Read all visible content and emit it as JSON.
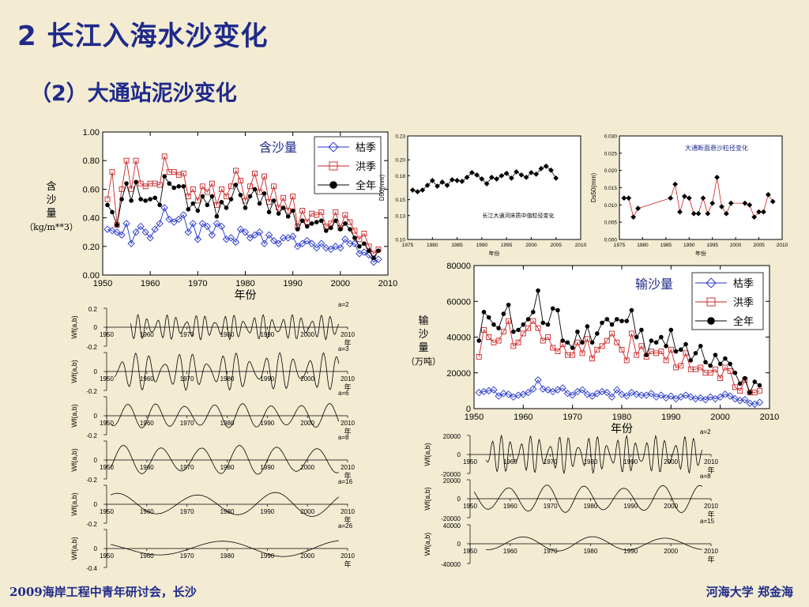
{
  "slide": {
    "title": "2 长江入海水沙变化",
    "subtitle": "（2）大通站泥沙变化",
    "footer_left": "2009海岸工程中青年研讨会，长沙",
    "footer_right": "河海大学  郑金海"
  },
  "colors": {
    "blue": "#2233cc",
    "red": "#cc2222",
    "black": "#000000",
    "title": "#1f2a8a"
  },
  "chart_data": [
    {
      "id": "concentration",
      "type": "line",
      "title": "含沙量",
      "xlabel": "年份",
      "ylabel": "含沙量（kg/m**3）",
      "xlim": [
        1950,
        2010
      ],
      "ylim": [
        0,
        1.0
      ],
      "xticks": [
        "1950",
        "1960",
        "1970",
        "1980",
        "1990",
        "2000",
        "2010"
      ],
      "yticks": [
        "0.00",
        "0.20",
        "0.40",
        "0.60",
        "0.80",
        "1.00"
      ],
      "legend": {
        "position": "top-right",
        "entries": [
          "枯季",
          "洪季",
          "全年"
        ]
      },
      "x": [
        1951,
        1952,
        1953,
        1954,
        1955,
        1956,
        1957,
        1958,
        1959,
        1960,
        1961,
        1962,
        1963,
        1964,
        1965,
        1966,
        1967,
        1968,
        1969,
        1970,
        1971,
        1972,
        1973,
        1974,
        1975,
        1976,
        1977,
        1978,
        1979,
        1980,
        1981,
        1982,
        1983,
        1984,
        1985,
        1986,
        1987,
        1988,
        1989,
        1990,
        1991,
        1992,
        1993,
        1994,
        1995,
        1996,
        1997,
        1998,
        1999,
        2000,
        2001,
        2002,
        2003,
        2004,
        2005,
        2006,
        2007,
        2008
      ],
      "series": [
        {
          "name": "枯季",
          "marker": "diamond",
          "values": [
            0.32,
            0.31,
            0.3,
            0.28,
            0.36,
            0.22,
            0.3,
            0.34,
            0.3,
            0.26,
            0.32,
            0.36,
            0.47,
            0.39,
            0.37,
            0.39,
            0.42,
            0.3,
            0.36,
            0.25,
            0.36,
            0.34,
            0.28,
            0.36,
            0.34,
            0.25,
            0.26,
            0.23,
            0.32,
            0.3,
            0.26,
            0.28,
            0.3,
            0.22,
            0.28,
            0.24,
            0.22,
            0.26,
            0.26,
            0.27,
            0.2,
            0.22,
            0.24,
            0.22,
            0.19,
            0.22,
            0.19,
            0.18,
            0.2,
            0.19,
            0.25,
            0.22,
            0.22,
            0.15,
            0.16,
            0.14,
            0.09,
            0.11
          ]
        },
        {
          "name": "洪季",
          "marker": "square",
          "values": [
            0.53,
            0.72,
            0.35,
            0.6,
            0.8,
            0.6,
            0.8,
            0.64,
            0.62,
            0.64,
            0.64,
            0.63,
            0.83,
            0.72,
            0.72,
            0.7,
            0.71,
            0.55,
            0.6,
            0.52,
            0.62,
            0.58,
            0.64,
            0.49,
            0.6,
            0.55,
            0.62,
            0.73,
            0.66,
            0.52,
            0.62,
            0.71,
            0.58,
            0.69,
            0.51,
            0.62,
            0.47,
            0.54,
            0.45,
            0.55,
            0.34,
            0.45,
            0.37,
            0.43,
            0.42,
            0.44,
            0.34,
            0.36,
            0.44,
            0.33,
            0.42,
            0.37,
            0.31,
            0.25,
            0.29,
            0.2,
            0.15,
            0.18
          ]
        },
        {
          "name": "全年",
          "marker": "circle",
          "values": [
            0.49,
            0.44,
            0.35,
            0.53,
            0.64,
            0.52,
            0.65,
            0.53,
            0.52,
            0.53,
            0.54,
            0.49,
            0.69,
            0.64,
            0.61,
            0.62,
            0.62,
            0.46,
            0.5,
            0.45,
            0.55,
            0.49,
            0.55,
            0.41,
            0.51,
            0.47,
            0.53,
            0.63,
            0.56,
            0.47,
            0.55,
            0.6,
            0.5,
            0.57,
            0.44,
            0.52,
            0.43,
            0.47,
            0.41,
            0.45,
            0.32,
            0.38,
            0.34,
            0.36,
            0.37,
            0.38,
            0.31,
            0.33,
            0.38,
            0.32,
            0.36,
            0.32,
            0.26,
            0.2,
            0.22,
            0.17,
            0.12,
            0.17
          ]
        }
      ]
    },
    {
      "id": "bed-median",
      "type": "line",
      "title": "长江大通河床质中值粒径变化",
      "xlabel": "年份",
      "ylabel": "D50(mm)",
      "xlim": [
        1975,
        2010
      ],
      "ylim": [
        0.1,
        0.23
      ],
      "xticks": [
        "1975",
        "1980",
        "1985",
        "1990",
        "1995",
        "2000",
        "2005",
        "2010"
      ],
      "yticks": [
        "0.10",
        "0.13",
        "0.15",
        "0.18",
        "0.20",
        "0.23"
      ],
      "x": [
        1976,
        1977,
        1978,
        1979,
        1980,
        1981,
        1982,
        1983,
        1984,
        1985,
        1986,
        1987,
        1988,
        1989,
        1990,
        1991,
        1992,
        1993,
        1994,
        1995,
        1996,
        1997,
        1998,
        1999,
        2000,
        2001,
        2002,
        2003,
        2004,
        2005
      ],
      "series": [
        {
          "values": [
            0.162,
            0.16,
            0.162,
            0.168,
            0.174,
            0.167,
            0.172,
            0.168,
            0.175,
            0.174,
            0.173,
            0.178,
            0.184,
            0.181,
            0.176,
            0.17,
            0.178,
            0.176,
            0.18,
            0.183,
            0.177,
            0.185,
            0.181,
            0.178,
            0.184,
            0.182,
            0.189,
            0.192,
            0.187,
            0.177
          ]
        }
      ]
    },
    {
      "id": "suspended-median",
      "type": "line",
      "title": "大通断面悬沙粒径变化",
      "xlabel": "年份",
      "ylabel": "Ds50(mm)",
      "xlim": [
        1975,
        2010
      ],
      "ylim": [
        0,
        0.03
      ],
      "xticks": [
        "1975",
        "1980",
        "1985",
        "1990",
        "1995",
        "2000",
        "2005",
        "2010"
      ],
      "yticks": [
        "0.000",
        "0.005",
        "0.010",
        "0.015",
        "0.020",
        "0.025",
        "0.030"
      ],
      "x": [
        1976,
        1977,
        1978,
        1979,
        1986,
        1987,
        1988,
        1989,
        1990,
        1991,
        1992,
        1993,
        1994,
        1995,
        1996,
        1997,
        1998,
        1999,
        2002,
        2003,
        2004,
        2005,
        2006,
        2007,
        2008
      ],
      "series": [
        {
          "values": [
            0.012,
            0.012,
            0.0065,
            0.009,
            0.012,
            0.016,
            0.008,
            0.0125,
            0.012,
            0.0075,
            0.0075,
            0.012,
            0.0075,
            0.0105,
            0.018,
            0.0095,
            0.0075,
            0.0105,
            0.0105,
            0.01,
            0.0065,
            0.008,
            0.008,
            0.013,
            0.011
          ]
        }
      ]
    },
    {
      "id": "transport",
      "type": "line",
      "title": "输沙量",
      "xlabel": "年份",
      "ylabel": "输沙量（万吨）",
      "xlim": [
        1950,
        2010
      ],
      "ylim": [
        0,
        80000
      ],
      "xticks": [
        "1950",
        "1960",
        "1970",
        "1980",
        "1990",
        "2000",
        "2010"
      ],
      "yticks": [
        "0",
        "20000",
        "40000",
        "60000",
        "80000"
      ],
      "legend": {
        "position": "top-right",
        "entries": [
          "枯季",
          "洪季",
          "全年"
        ]
      },
      "x": [
        1951,
        1952,
        1953,
        1954,
        1955,
        1956,
        1957,
        1958,
        1959,
        1960,
        1961,
        1962,
        1963,
        1964,
        1965,
        1966,
        1967,
        1968,
        1969,
        1970,
        1971,
        1972,
        1973,
        1974,
        1975,
        1976,
        1977,
        1978,
        1979,
        1980,
        1981,
        1982,
        1983,
        1984,
        1985,
        1986,
        1987,
        1988,
        1989,
        1990,
        1991,
        1992,
        1993,
        1994,
        1995,
        1996,
        1997,
        1998,
        1999,
        2000,
        2001,
        2002,
        2003,
        2004,
        2005,
        2006,
        2007,
        2008
      ],
      "series": [
        {
          "name": "枯季",
          "marker": "diamond",
          "values": [
            9000,
            9500,
            10000,
            10500,
            7000,
            8500,
            8000,
            6500,
            7500,
            8000,
            9000,
            11000,
            16000,
            11000,
            10500,
            9500,
            10500,
            11500,
            8500,
            7500,
            9500,
            10500,
            8000,
            7000,
            8500,
            9500,
            9000,
            6500,
            10500,
            8000,
            7000,
            9000,
            8000,
            7500,
            7500,
            8500,
            6500,
            7500,
            6000,
            7000,
            5500,
            6500,
            7500,
            6500,
            5500,
            6000,
            5000,
            6500,
            5500,
            6500,
            8000,
            7000,
            5500,
            4500,
            5000,
            3000,
            2500,
            3500
          ]
        },
        {
          "name": "洪季",
          "marker": "square",
          "values": [
            29000,
            44000,
            40000,
            37000,
            38000,
            43000,
            49000,
            35000,
            37000,
            42000,
            45000,
            49000,
            45000,
            38000,
            40000,
            34000,
            32000,
            36000,
            30000,
            30000,
            37000,
            31000,
            39000,
            28000,
            33000,
            35000,
            38000,
            42000,
            37000,
            33000,
            27000,
            42000,
            30000,
            35000,
            29000,
            32000,
            31000,
            32000,
            27000,
            33000,
            23000,
            24000,
            31000,
            22000,
            22000,
            23000,
            20000,
            20000,
            22000,
            17000,
            23000,
            21000,
            12000,
            10000,
            16000,
            9000,
            9000,
            10000
          ]
        },
        {
          "name": "全年",
          "marker": "circle",
          "values": [
            38000,
            54000,
            51000,
            47000,
            45000,
            53000,
            58000,
            43000,
            44000,
            47000,
            50000,
            54000,
            66000,
            48000,
            47000,
            56000,
            55000,
            38000,
            37000,
            34000,
            43000,
            37000,
            46000,
            37000,
            42000,
            48000,
            50000,
            47000,
            50000,
            49000,
            49000,
            55000,
            40000,
            44000,
            30000,
            38000,
            37000,
            40000,
            35000,
            44000,
            32000,
            33000,
            36000,
            27000,
            31000,
            35000,
            26000,
            24000,
            30000,
            25000,
            28000,
            25000,
            20000,
            14000,
            17000,
            9000,
            15000,
            13000
          ]
        }
      ]
    },
    {
      "id": "wavelet-concentration",
      "type": "line",
      "xlabel": "年",
      "ylabel": "Wf(a,b)",
      "xlim": [
        1950,
        2010
      ],
      "xticks": [
        "1950",
        "1960",
        "1970",
        "1980",
        "1990",
        "2000",
        "2010"
      ],
      "ylim": [
        -0.4,
        0.2
      ],
      "yticks": [
        "-0.2",
        "0",
        "0.2"
      ],
      "bottom_tick": "-0.4",
      "scales": [
        "a=2",
        "a=3",
        "a=6",
        "a=8",
        "a=16",
        "a=26"
      ]
    },
    {
      "id": "wavelet-transport",
      "type": "line",
      "xlabel": "年",
      "ylabel": "Wf(a,b)",
      "xlim": [
        1950,
        2010
      ],
      "xticks": [
        "1950",
        "1960",
        "1970",
        "1980",
        "1990",
        "2000",
        "2010"
      ],
      "yticks": [
        "20000",
        "0",
        "-20000"
      ],
      "top_tick_last": "40000",
      "bottom_tick_last": "-40000",
      "scales": [
        "a=2",
        "a=8",
        "a=15"
      ]
    }
  ]
}
